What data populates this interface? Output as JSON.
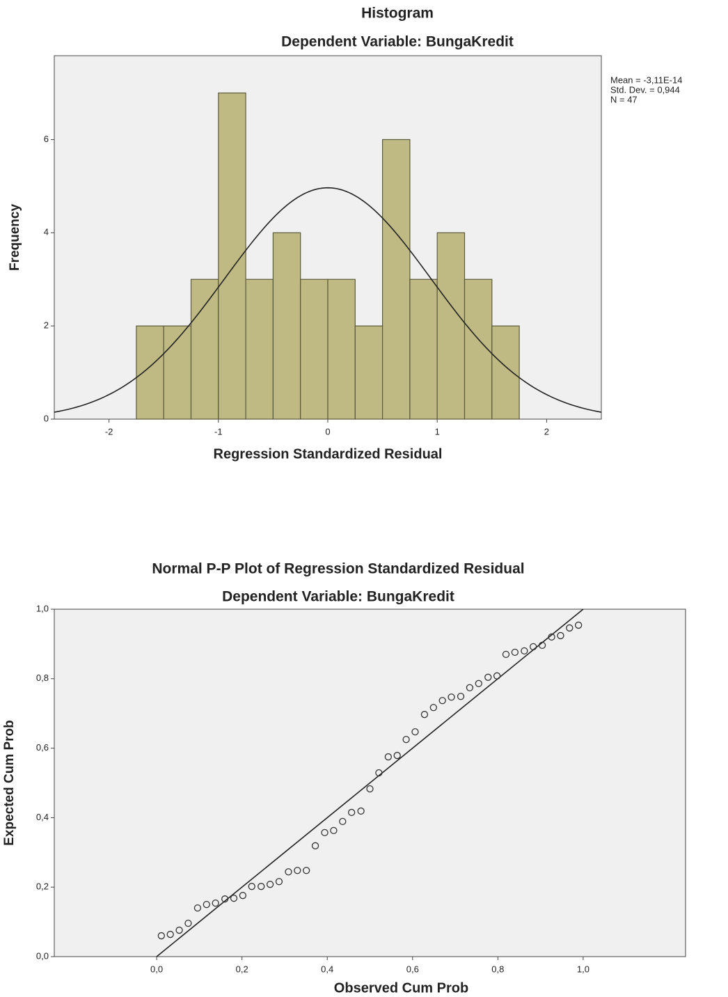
{
  "chart_data": [
    {
      "type": "histogram",
      "title": "Histogram",
      "subtitle": "Dependent Variable: BungaKredit",
      "x_label": "Regression Standardized Residual",
      "y_label": "Frequency",
      "bins": [
        -1.75,
        -1.5,
        -1.25,
        -1,
        -0.75,
        -0.5,
        -0.25,
        0,
        0.25,
        0.5,
        0.75,
        1,
        1.25,
        1.5,
        1.75
      ],
      "values": [
        2,
        2,
        3,
        7,
        3,
        4,
        3,
        3,
        2,
        6,
        3,
        4,
        3,
        2
      ],
      "color": "#bfb983",
      "xlim": [
        -2.5,
        2.5
      ],
      "xticks": [
        -2,
        -1,
        0,
        1,
        2
      ],
      "ylim": [
        0,
        7.8
      ],
      "yticks": [
        0,
        2,
        4,
        6
      ],
      "stats": [
        {
          "value": -3.11e-14,
          "label": "Mean = -3,11E-14"
        },
        {
          "value": 0.944,
          "label": "Std. Dev. = 0,944"
        },
        {
          "value": 47,
          "label": "N = 47"
        }
      ],
      "normal_curve": true
    },
    {
      "type": "scatter",
      "title": "Normal P-P Plot of Regression Standardized Residual",
      "subtitle": "Dependent Variable: BungaKredit",
      "x_label": "Observed Cum Prob",
      "y_label": "Expected Cum Prob",
      "x": [
        0.011,
        0.032,
        0.053,
        0.074,
        0.096,
        0.117,
        0.138,
        0.16,
        0.181,
        0.202,
        0.223,
        0.245,
        0.266,
        0.287,
        0.309,
        0.33,
        0.351,
        0.372,
        0.394,
        0.415,
        0.436,
        0.457,
        0.479,
        0.5,
        0.521,
        0.543,
        0.564,
        0.585,
        0.606,
        0.628,
        0.649,
        0.67,
        0.691,
        0.713,
        0.734,
        0.755,
        0.777,
        0.798,
        0.819,
        0.84,
        0.862,
        0.883,
        0.904,
        0.926,
        0.947,
        0.968,
        0.989
      ],
      "values": [
        0.06,
        0.064,
        0.076,
        0.096,
        0.14,
        0.15,
        0.154,
        0.166,
        0.168,
        0.176,
        0.202,
        0.202,
        0.208,
        0.216,
        0.244,
        0.248,
        0.248,
        0.319,
        0.357,
        0.363,
        0.389,
        0.415,
        0.419,
        0.483,
        0.529,
        0.575,
        0.579,
        0.625,
        0.647,
        0.697,
        0.717,
        0.737,
        0.747,
        0.749,
        0.774,
        0.786,
        0.804,
        0.808,
        0.87,
        0.876,
        0.88,
        0.892,
        0.896,
        0.92,
        0.924,
        0.946,
        0.954
      ],
      "color": "#333333",
      "xlim": [
        -0.24,
        1.24
      ],
      "ylim": [
        0,
        1
      ],
      "xticks": [
        {
          "value": 0,
          "label": "0,0"
        },
        {
          "value": 0.2,
          "label": "0,2"
        },
        {
          "value": 0.4,
          "label": "0,4"
        },
        {
          "value": 0.6,
          "label": "0,6"
        },
        {
          "value": 0.8,
          "label": "0,8"
        },
        {
          "value": 1,
          "label": "1,0"
        }
      ],
      "yticks": [
        {
          "value": 0,
          "label": "0,0"
        },
        {
          "value": 0.2,
          "label": "0,2"
        },
        {
          "value": 0.4,
          "label": "0,4"
        },
        {
          "value": 0.6,
          "label": "0,6"
        },
        {
          "value": 0.8,
          "label": "0,8"
        },
        {
          "value": 1,
          "label": "1,0"
        }
      ],
      "reference_line": true
    }
  ]
}
